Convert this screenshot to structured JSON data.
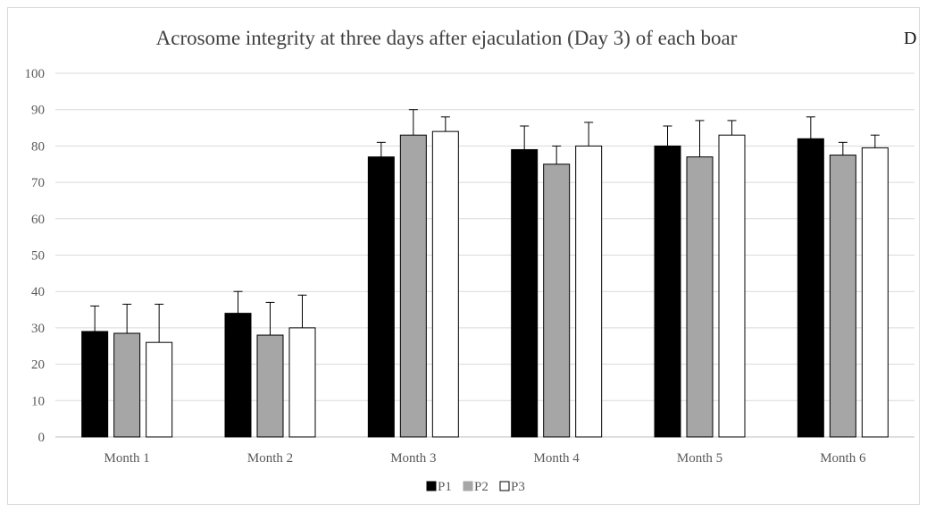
{
  "chart_data": {
    "type": "bar",
    "title": "Acrosome integrity  at three days after ejaculation  (Day 3) of each boar",
    "panel_label": "D",
    "xlabel": "",
    "ylabel": "",
    "ylim": [
      0,
      100
    ],
    "yticks": [
      0,
      10,
      20,
      30,
      40,
      50,
      60,
      70,
      80,
      90,
      100
    ],
    "categories": [
      "Month 1",
      "Month 2",
      "Month 3",
      "Month 4",
      "Month 5",
      "Month 6"
    ],
    "series": [
      {
        "name": "P1",
        "color": "#000000",
        "values": [
          29,
          34,
          77,
          79,
          80,
          82
        ],
        "errors": [
          7,
          6,
          4,
          6.5,
          5.5,
          6
        ]
      },
      {
        "name": "P2",
        "color": "#a6a6a6",
        "values": [
          28.5,
          28,
          83,
          75,
          77,
          77.5
        ],
        "errors": [
          8,
          9,
          7,
          5,
          10,
          3.5
        ]
      },
      {
        "name": "P3",
        "color": "#ffffff",
        "values": [
          26,
          30,
          84,
          80,
          83,
          79.5
        ],
        "errors": [
          10.5,
          9,
          4,
          6.5,
          4,
          3.5
        ]
      }
    ],
    "grid": true,
    "legend_position": "bottom"
  }
}
